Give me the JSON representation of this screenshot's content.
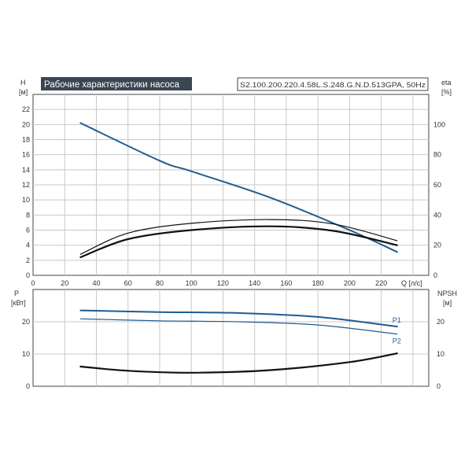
{
  "colors": {
    "blue": "#1f5b8f",
    "black": "#111111",
    "grid": "#c8c8c8",
    "title_bg": "#3a4652",
    "axis": "#444444"
  },
  "chart_data": [
    {
      "type": "line",
      "title": "Рабочие характеристики насоса",
      "model": "S2.100.200.220.4.58L.S.248.G.N.D.513GPA, 50Hz",
      "ylabel": "H",
      "yunit": "[м]",
      "y2label": "eta",
      "y2unit": "[%]",
      "xlabel": "Q [л/с]",
      "xlim": [
        0,
        250
      ],
      "ylim": [
        0,
        24
      ],
      "y2lim": [
        0,
        120
      ],
      "xticks": [
        "0",
        "20",
        "40",
        "60",
        "80",
        "100",
        "120",
        "140",
        "160",
        "180",
        "200",
        "220"
      ],
      "yticks": [
        "0",
        "2",
        "4",
        "6",
        "8",
        "10",
        "12",
        "14",
        "16",
        "18",
        "20",
        "22"
      ],
      "y2ticks": [
        "0",
        "20",
        "40",
        "60",
        "80",
        "100"
      ],
      "grid": true,
      "series": [
        {
          "axis": "y",
          "color": "#1f5b8f",
          "width": 2,
          "x": [
            30,
            80,
            100,
            150,
            200,
            230
          ],
          "values": [
            20.2,
            15.2,
            13.8,
            10.3,
            6.0,
            3.1
          ]
        },
        {
          "axis": "y2",
          "color": "#111111",
          "width": 1.2,
          "x": [
            30,
            60,
            100,
            150,
            190,
            230
          ],
          "values": [
            14,
            28,
            34.5,
            37,
            34,
            23
          ]
        },
        {
          "axis": "y2",
          "color": "#111111",
          "width": 2.2,
          "x": [
            30,
            60,
            100,
            150,
            190,
            230
          ],
          "values": [
            12,
            24,
            30,
            32.5,
            29.5,
            20
          ]
        }
      ]
    },
    {
      "type": "line",
      "ylabel": "P",
      "yunit": "[кВт]",
      "y2label": "NPSH",
      "y2unit": "[м]",
      "xlim": [
        0,
        250
      ],
      "ylim": [
        0,
        30
      ],
      "y2lim": [
        0,
        30
      ],
      "yticks": [
        "0",
        "10",
        "20"
      ],
      "y2ticks": [
        "0",
        "10",
        "20"
      ],
      "grid": true,
      "series": [
        {
          "name": "P1",
          "axis": "y",
          "color": "#1f5b8f",
          "width": 2,
          "x": [
            30,
            80,
            130,
            180,
            230
          ],
          "values": [
            23.5,
            23.0,
            22.7,
            21.5,
            18.5
          ]
        },
        {
          "name": "P2",
          "axis": "y",
          "color": "#1f5b8f",
          "width": 1.2,
          "x": [
            30,
            80,
            130,
            180,
            230
          ],
          "values": [
            20.9,
            20.3,
            20.0,
            19.0,
            16.2
          ]
        },
        {
          "axis": "y2",
          "color": "#111111",
          "width": 2.2,
          "x": [
            30,
            60,
            100,
            150,
            200,
            230
          ],
          "values": [
            6.1,
            4.8,
            4.2,
            5.0,
            7.5,
            10.2
          ]
        }
      ]
    }
  ]
}
